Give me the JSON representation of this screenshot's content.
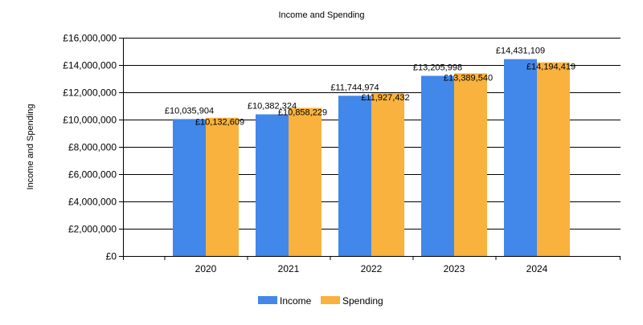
{
  "chart_data": {
    "type": "bar",
    "title": "Income and Spending",
    "xlabel": "",
    "ylabel": "Income and Spending",
    "categories": [
      "2020",
      "2021",
      "2022",
      "2023",
      "2024"
    ],
    "series": [
      {
        "name": "Income",
        "color": "#4287EA",
        "values": [
          10035904,
          10382324,
          11744974,
          13205998,
          14431109
        ],
        "labels": [
          "£10,035,904",
          "£10,382,324",
          "£11,744,974",
          "£13,205,998",
          "£14,431,109"
        ]
      },
      {
        "name": "Spending",
        "color": "#F9B23D",
        "values": [
          10132609,
          10858229,
          11927432,
          13389540,
          14194419
        ],
        "labels": [
          "£10,132,609",
          "£10,858,229",
          "£11,927,432",
          "£13,389,540",
          "£14,194,419"
        ]
      }
    ],
    "ylim": [
      0,
      16000000
    ],
    "yticks": [
      0,
      2000000,
      4000000,
      6000000,
      8000000,
      10000000,
      12000000,
      14000000,
      16000000
    ],
    "ytick_labels": [
      "£0",
      "£2,000,000",
      "£4,000,000",
      "£6,000,000",
      "£8,000,000",
      "£10,000,000",
      "£12,000,000",
      "£14,000,000",
      "£16,000,000"
    ],
    "grid": "horizontal",
    "legend_position": "bottom-center"
  }
}
